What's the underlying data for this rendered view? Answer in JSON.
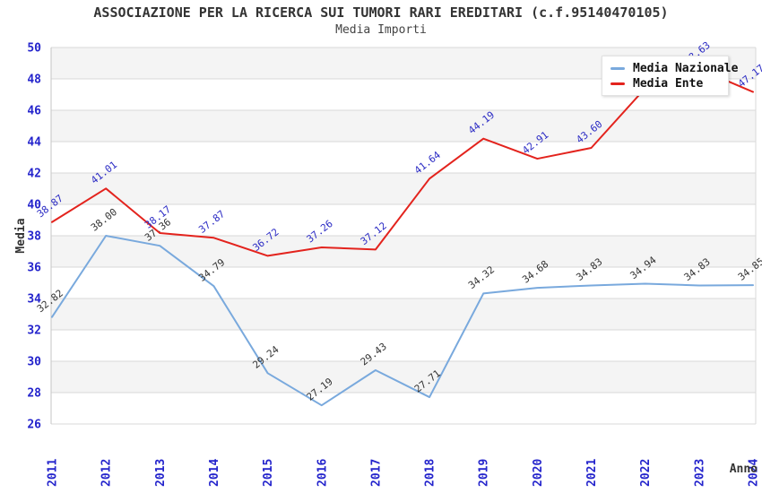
{
  "header": {
    "title": "ASSOCIAZIONE PER LA RICERCA SUI TUMORI RARI EREDITARI (c.f.95140470105)",
    "subtitle": "Media Importi"
  },
  "legend": [
    {
      "label": "Media Nazionale",
      "color": "#79a9dd"
    },
    {
      "label": "Media Ente",
      "color": "#e3231d"
    }
  ],
  "colors": {
    "grid_line": "#d9d9d9",
    "axis_line": "#c6c6c6",
    "band_fill": "#f4f4f4",
    "axis_text": "#2424cc",
    "title_text": "#333333",
    "nazionale_line": "#79a9dd",
    "ente_line": "#e3231d",
    "nazionale_label": "#333333",
    "ente_label": "#2b2bc4"
  },
  "chart_data": {
    "type": "line",
    "title": "ASSOCIAZIONE PER LA RICERCA SUI TUMORI RARI EREDITARI (c.f.95140470105)",
    "subtitle": "Media Importi",
    "xlabel": "Anno",
    "ylabel": "Media",
    "ylim": [
      26,
      50
    ],
    "ytick_step": 2,
    "grid": true,
    "alternating_bands": true,
    "legend_position": "top-right",
    "categories": [
      "2011",
      "2012",
      "2013",
      "2014",
      "2015",
      "2016",
      "2017",
      "2018",
      "2019",
      "2020",
      "2021",
      "2022",
      "2023",
      "2024"
    ],
    "yticks": [
      "50",
      "48",
      "46",
      "44",
      "42",
      "40",
      "38",
      "36",
      "34",
      "32",
      "30",
      "28",
      "26"
    ],
    "series": [
      {
        "name": "Media Nazionale",
        "color": "#79a9dd",
        "label_color": "#333333",
        "values": [
          32.82,
          38.0,
          37.36,
          34.79,
          29.24,
          27.19,
          29.43,
          27.71,
          34.32,
          34.68,
          34.83,
          34.94,
          34.83,
          34.85
        ],
        "hidden_label_indices": []
      },
      {
        "name": "Media Ente",
        "color": "#e3231d",
        "label_color": "#2b2bc4",
        "values": [
          38.87,
          41.01,
          38.17,
          37.87,
          36.72,
          37.26,
          37.12,
          41.64,
          44.19,
          42.91,
          43.6,
          47.4,
          48.63,
          47.17
        ],
        "hidden_label_indices": [
          11
        ],
        "note": "value at 2022 is hidden behind the legend box"
      }
    ]
  }
}
